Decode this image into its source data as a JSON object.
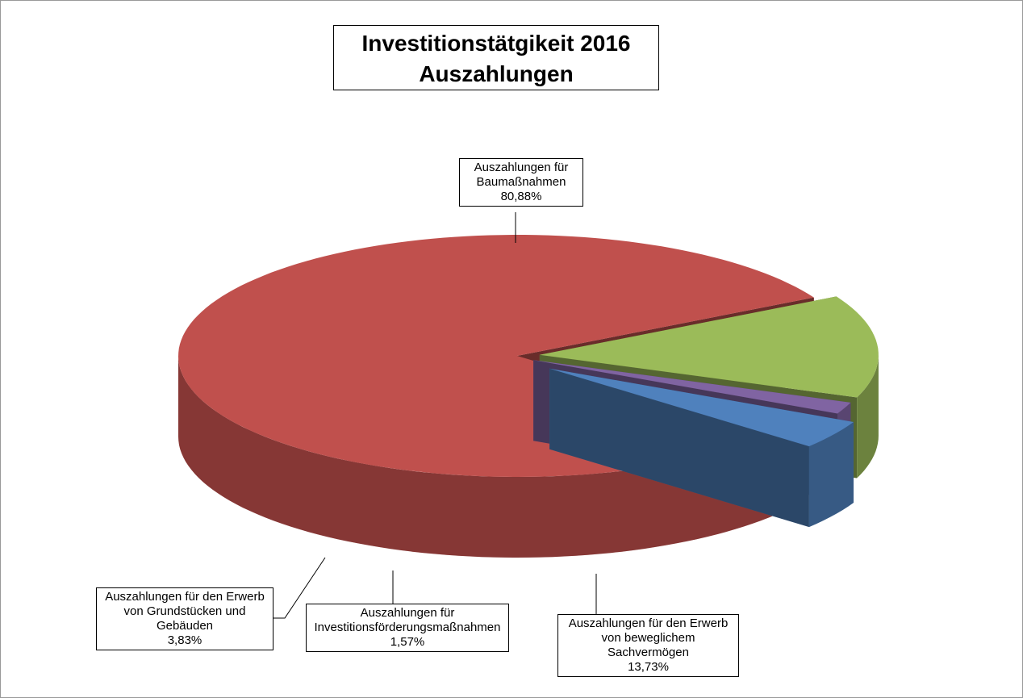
{
  "chart_data": {
    "type": "pie",
    "title": "Investitionstätgikeit 2016",
    "subtitle": "Auszahlungen",
    "categories": [
      "Auszahlungen für Baumaßnahmen",
      "Auszahlungen für den Erwerb von beweglichem Sachvermögen",
      "Auszahlungen für Investitionsförderungsmaßnahmen",
      "Auszahlungen für den Erwerb von Grundstücken und Gebäuden"
    ],
    "values": [
      80.88,
      13.73,
      1.57,
      3.83
    ],
    "value_labels": [
      "80,88%",
      "13,73%",
      "1,57%",
      "3,83%"
    ],
    "colors": [
      "#c0504d",
      "#9bbb59",
      "#8064a2",
      "#4f81bd"
    ]
  }
}
